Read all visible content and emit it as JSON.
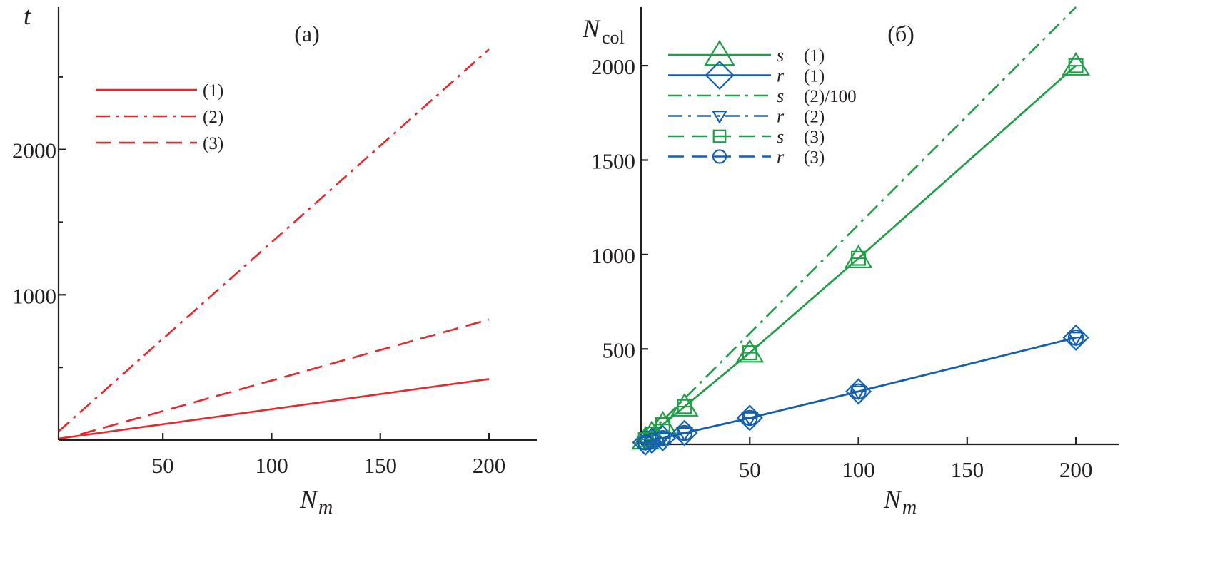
{
  "chart_data": [
    {
      "type": "line",
      "panel_label": "(а)",
      "xlabel": "N",
      "xlabel_sub": "m",
      "ylabel": "t",
      "x_ticks": [
        "50",
        "100",
        "150",
        "200"
      ],
      "y_ticks": [
        "1000",
        "2000"
      ],
      "xlim": [
        2,
        222
      ],
      "ylim": [
        0,
        2980
      ],
      "legend_position": "top-left",
      "colors": {
        "red": "#e8262b"
      },
      "series": [
        {
          "name": "(1)",
          "style": "solid",
          "color": "#e8262b",
          "x": [
            2,
            200
          ],
          "y": [
            10,
            420
          ]
        },
        {
          "name": "(2)",
          "style": "dashdot",
          "color": "#e8262b",
          "x": [
            2,
            200
          ],
          "y": [
            60,
            2690
          ]
        },
        {
          "name": "(3)",
          "style": "dashed",
          "color": "#e8262b",
          "x": [
            12,
            200
          ],
          "y": [
            40,
            830
          ]
        }
      ]
    },
    {
      "type": "line",
      "panel_label": "(б)",
      "xlabel": "N",
      "xlabel_sub": "m",
      "ylabel": "N",
      "ylabel_sub": "col",
      "x_ticks": [
        "50",
        "100",
        "150",
        "200"
      ],
      "y_ticks": [
        "500",
        "1000",
        "1500",
        "2000"
      ],
      "xlim": [
        0,
        220
      ],
      "ylim": [
        -5,
        2310
      ],
      "legend_position": "top-left",
      "colors": {
        "green": "#1f9e47",
        "blue": "#1560ad"
      },
      "series": [
        {
          "name": "(1)",
          "symbol": "s",
          "style": "solid",
          "color": "#1f9e47",
          "marker": "triangle",
          "x": [
            2,
            5,
            10,
            20,
            50,
            100,
            200
          ],
          "y": [
            20,
            50,
            100,
            195,
            480,
            980,
            2000
          ]
        },
        {
          "name": "(1)",
          "symbol": "r",
          "style": "solid",
          "color": "#1560ad",
          "marker": "diamond",
          "x": [
            2,
            5,
            10,
            20,
            50,
            100,
            200
          ],
          "y": [
            5,
            15,
            28,
            55,
            135,
            275,
            560
          ]
        },
        {
          "name": "(2)/100",
          "symbol": "s",
          "style": "dashdot",
          "color": "#1f9e47",
          "marker": "none",
          "x": [
            2,
            200
          ],
          "y": [
            30,
            2310
          ]
        },
        {
          "name": "(2)",
          "symbol": "r",
          "style": "dashdot",
          "color": "#1560ad",
          "marker": "down-triangle",
          "x": [
            2,
            5,
            10,
            20,
            50,
            100,
            200
          ],
          "y": [
            5,
            15,
            28,
            55,
            135,
            275,
            560
          ]
        },
        {
          "name": "(3)",
          "symbol": "s",
          "style": "dashed",
          "color": "#1f9e47",
          "marker": "square",
          "x": [
            2,
            5,
            10,
            20,
            50,
            100,
            200
          ],
          "y": [
            20,
            50,
            100,
            195,
            480,
            980,
            2000
          ]
        },
        {
          "name": "(3)",
          "symbol": "r",
          "style": "dashed",
          "color": "#1560ad",
          "marker": "circle",
          "x": [
            2,
            5,
            10,
            20,
            50,
            100,
            200
          ],
          "y": [
            5,
            15,
            28,
            55,
            135,
            275,
            560
          ]
        }
      ]
    }
  ]
}
